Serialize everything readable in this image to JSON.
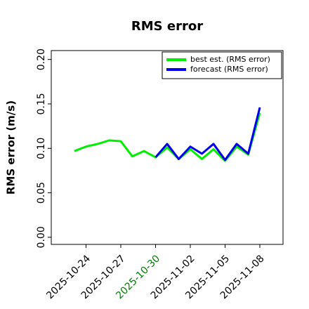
{
  "chart_data": {
    "type": "line",
    "title": "RMS error",
    "ylabel": "RMS error (m/s)",
    "x": [
      "2025-10-23",
      "2025-10-24",
      "2025-10-25",
      "2025-10-26",
      "2025-10-27",
      "2025-10-28",
      "2025-10-29",
      "2025-10-30",
      "2025-10-31",
      "2025-11-01",
      "2025-11-02",
      "2025-11-03",
      "2025-11-04",
      "2025-11-05",
      "2025-11-06",
      "2025-11-07",
      "2025-11-08"
    ],
    "series": [
      {
        "name": "best est. (RMS error)",
        "color": "#00ee00",
        "values": [
          0.097,
          0.102,
          0.105,
          0.109,
          0.108,
          0.091,
          0.097,
          0.09,
          0.101,
          0.088,
          0.099,
          0.088,
          0.099,
          0.086,
          0.102,
          0.093,
          0.14
        ]
      },
      {
        "name": "forecast (RMS error)",
        "color": "#0000ee",
        "values": [
          null,
          null,
          null,
          null,
          null,
          null,
          null,
          0.09,
          0.105,
          0.088,
          0.102,
          0.094,
          0.105,
          0.087,
          0.105,
          0.094,
          0.146
        ]
      }
    ],
    "xlim": [
      "2025-10-21",
      "2025-11-10"
    ],
    "xticks": [
      "2025-10-24",
      "2025-10-27",
      "2025-10-30",
      "2025-11-02",
      "2025-11-05",
      "2025-11-08"
    ],
    "highlight_tick": "2025-10-30",
    "highlight_color": "green",
    "ylim": [
      -0.008,
      0.21
    ],
    "yticks": [
      {
        "value": 0,
        "label": "0.00"
      },
      {
        "value": 0.05,
        "label": "0.05"
      },
      {
        "value": 0.1,
        "label": "0.10"
      },
      {
        "value": 0.15,
        "label": "0.15"
      },
      {
        "value": 0.2,
        "label": "0.20"
      }
    ],
    "legend": "upper right"
  }
}
